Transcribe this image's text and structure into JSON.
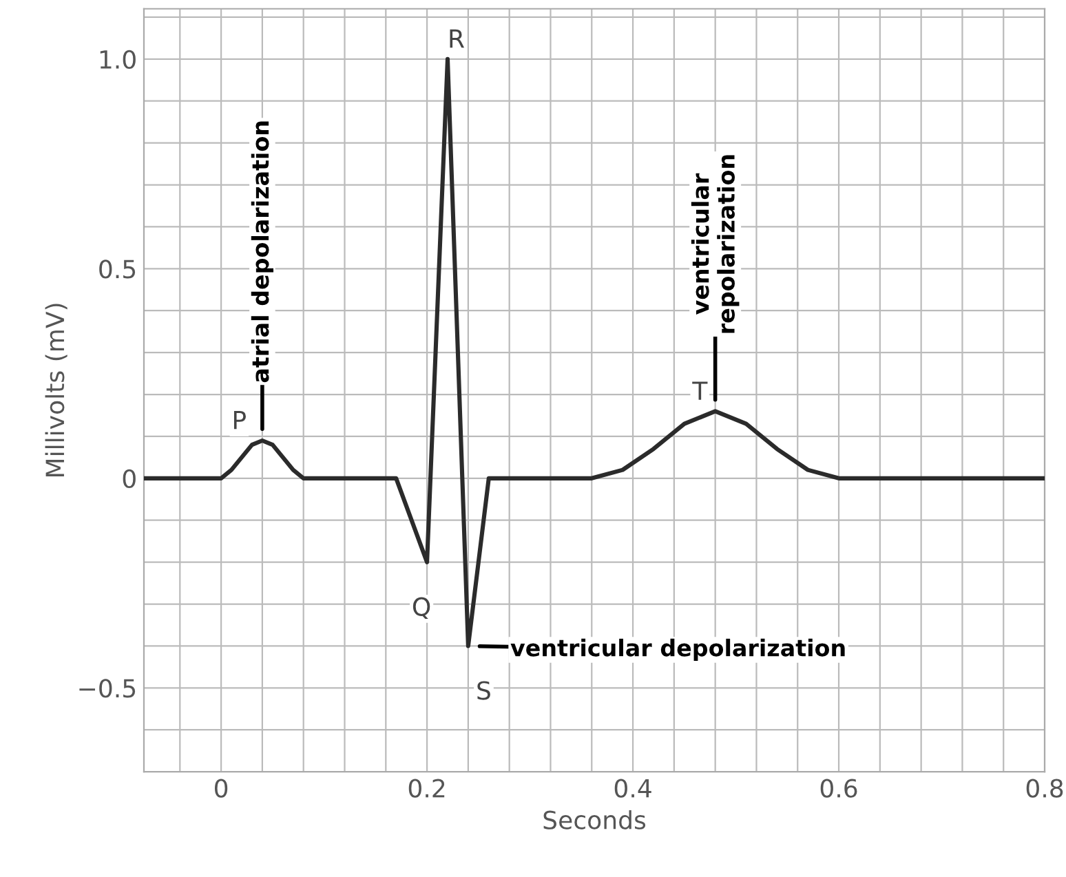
{
  "chart_data": {
    "type": "line",
    "xlabel": "Seconds",
    "ylabel": "Millivolts (mV)",
    "x": [
      -0.075,
      0.0,
      0.01,
      0.02,
      0.03,
      0.04,
      0.05,
      0.06,
      0.07,
      0.08,
      0.17,
      0.2,
      0.22,
      0.24,
      0.26,
      0.36,
      0.39,
      0.42,
      0.45,
      0.48,
      0.51,
      0.54,
      0.57,
      0.6,
      0.8
    ],
    "series": [
      {
        "color": "#2b2b2b",
        "values": [
          0,
          0,
          0.02,
          0.05,
          0.08,
          0.09,
          0.08,
          0.05,
          0.02,
          0,
          0,
          -0.2,
          1.0,
          -0.4,
          0,
          0,
          0.02,
          0.07,
          0.13,
          0.16,
          0.13,
          0.07,
          0.02,
          0,
          0
        ]
      }
    ],
    "xlim": [
      -0.075,
      0.8
    ],
    "ylim": [
      -0.7,
      1.12
    ],
    "xticks": [
      0,
      0.2,
      0.4,
      0.6,
      0.8
    ],
    "yticks": [
      {
        "value": -0.5,
        "label": "−0.5"
      },
      0,
      0.5,
      {
        "value": 1,
        "label": "1.0"
      }
    ],
    "grid": true,
    "legend": false,
    "marker": "none",
    "line_style": "solid",
    "annotations": [
      {
        "text": "P",
        "x": 0.04,
        "y": 0.09
      },
      {
        "text": "Q",
        "x": 0.2,
        "y": -0.2
      },
      {
        "text": "R",
        "x": 0.22,
        "y": 1.0
      },
      {
        "text": "S",
        "x": 0.24,
        "y": -0.4
      },
      {
        "text": "T",
        "x": 0.48,
        "y": 0.16
      },
      {
        "text": "atrial depolarization",
        "x": 0.04,
        "y": 0.09
      },
      {
        "text": "ventricular\nrepolarization",
        "x": 0.48,
        "y": 0.16
      },
      {
        "text": "ventricular depolarization",
        "x": 0.24,
        "y": -0.4
      }
    ]
  }
}
